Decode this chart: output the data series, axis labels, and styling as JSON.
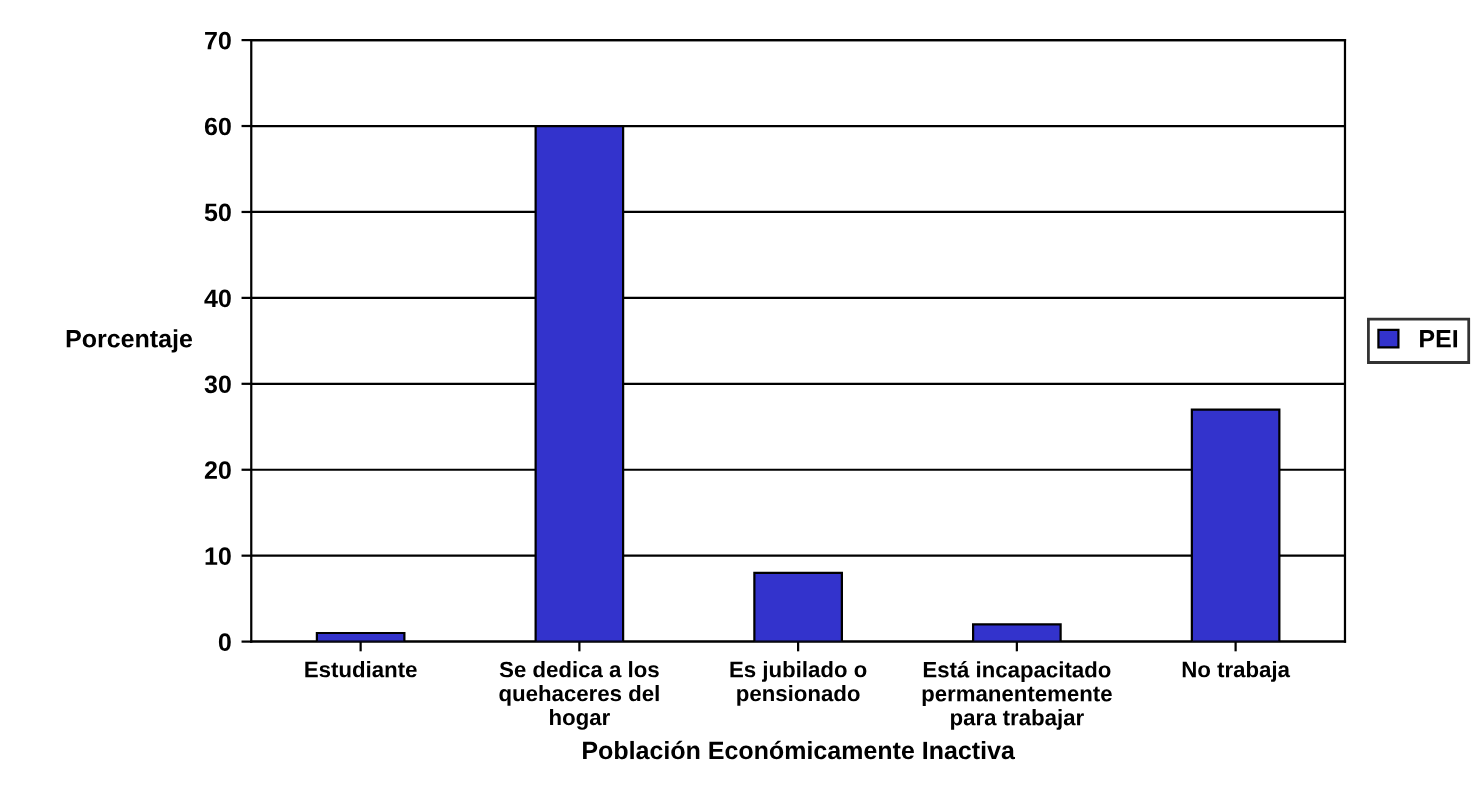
{
  "chart_data": {
    "type": "bar",
    "xlabel": "Población Económicamente Inactiva",
    "ylabel": "Porcentaje",
    "categories": [
      "Estudiante",
      "Se dedica a los\nquehaceres del\nhogar",
      "Es jubilado o\npensionado",
      "Está incapacitado\npermanentemente\npara trabajar",
      "No trabaja"
    ],
    "series": [
      {
        "name": "PEI",
        "color": "#3333cc",
        "values": [
          1,
          60,
          8,
          2,
          27
        ]
      }
    ],
    "ylim": [
      0,
      70
    ],
    "yticks": [
      0,
      10,
      20,
      30,
      40,
      50,
      60,
      70
    ],
    "grid": "y",
    "legend": "right"
  }
}
